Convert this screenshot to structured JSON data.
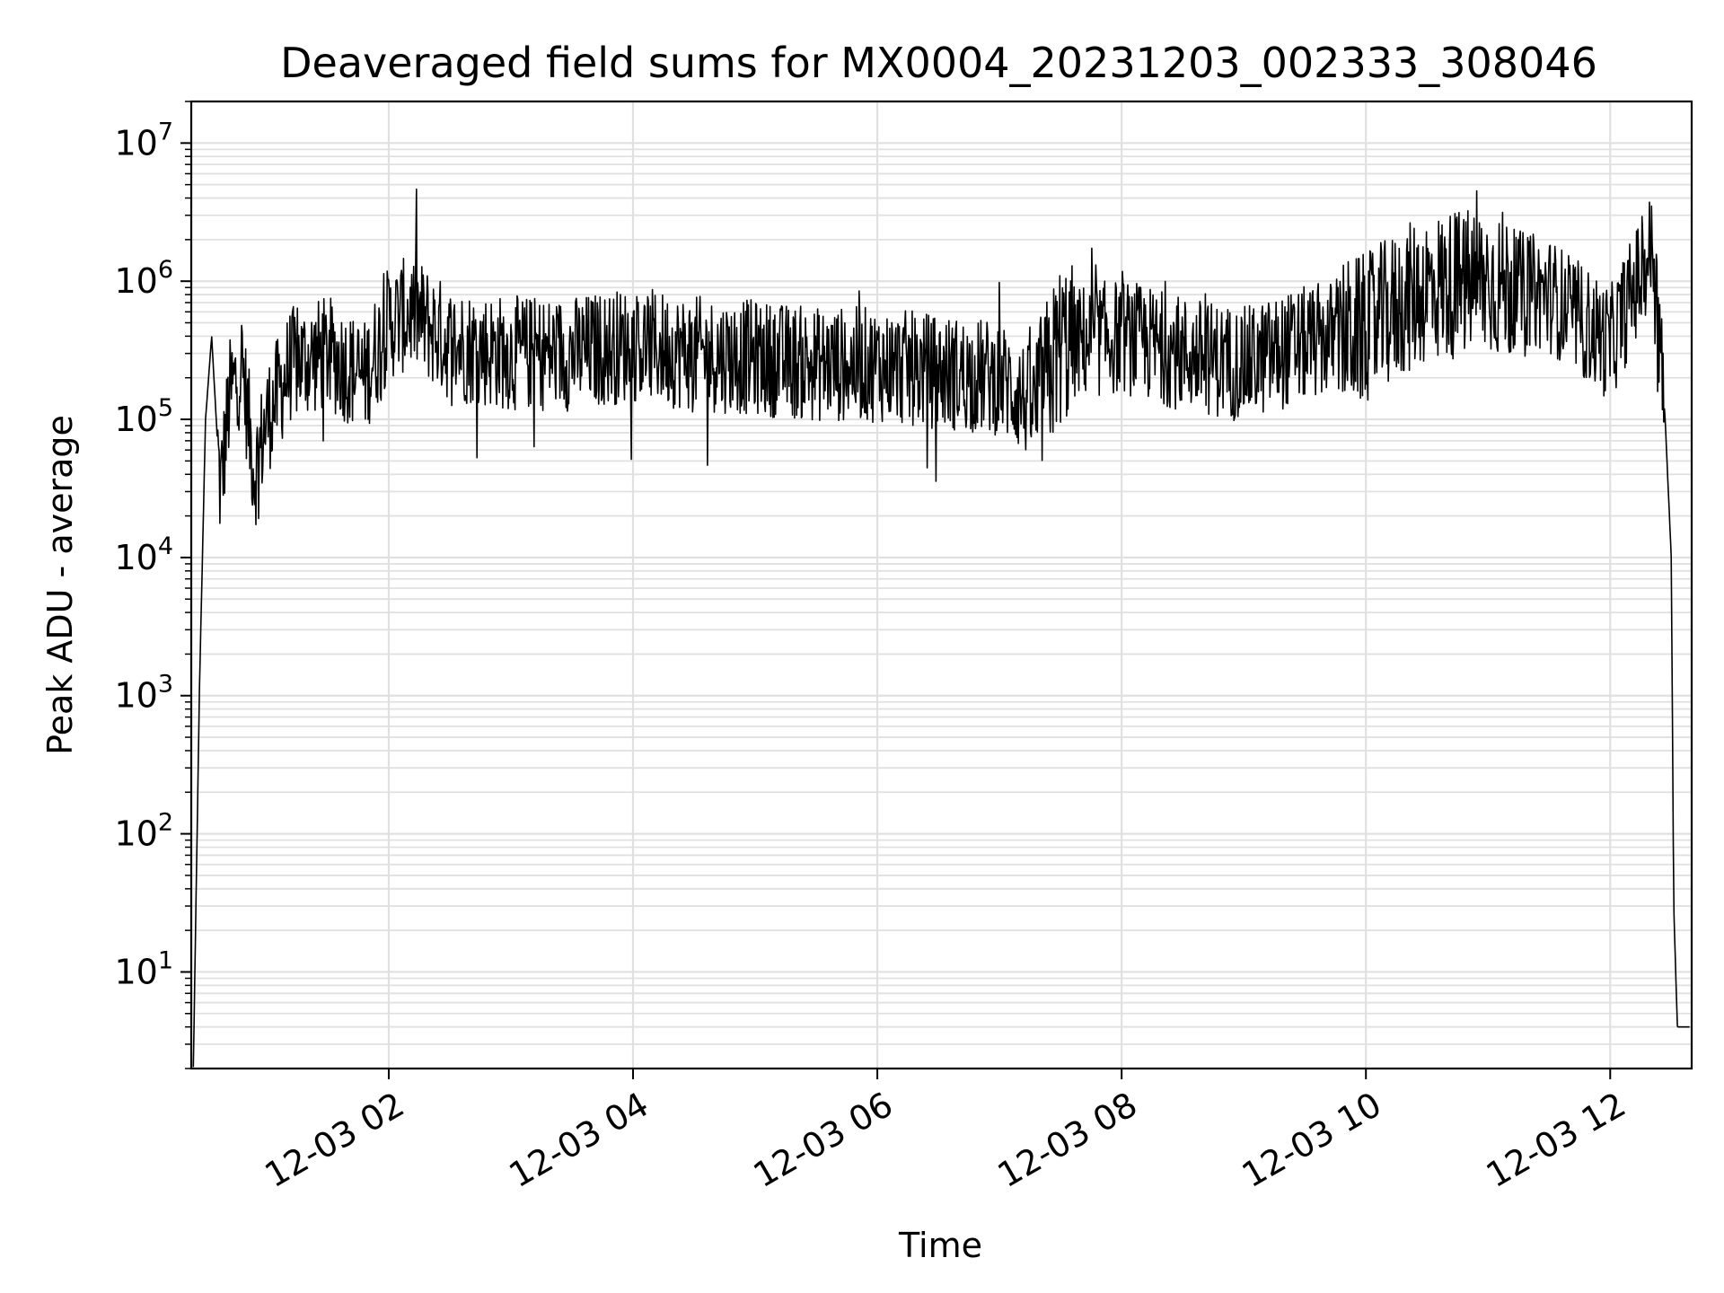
{
  "chart_data": {
    "type": "line",
    "title": "Deaveraged field sums for MX0004_20231203_002333_308046",
    "xlabel": "Time",
    "ylabel": "Peak ADU - average",
    "yscale": "log",
    "xlim": [
      "12-03 00:23",
      "12-03 12:40"
    ],
    "ylim": [
      2,
      20000000
    ],
    "grid": true,
    "line_color": "#000000",
    "x_ticks": [
      "12-03 02",
      "12-03 04",
      "12-03 06",
      "12-03 08",
      "12-03 10",
      "12-03 12"
    ],
    "y_ticks": [
      {
        "base": "10",
        "exp": "1",
        "value": 10
      },
      {
        "base": "10",
        "exp": "2",
        "value": 100
      },
      {
        "base": "10",
        "exp": "3",
        "value": 1000
      },
      {
        "base": "10",
        "exp": "4",
        "value": 10000
      },
      {
        "base": "10",
        "exp": "5",
        "value": 100000
      },
      {
        "base": "10",
        "exp": "6",
        "value": 1000000
      },
      {
        "base": "10",
        "exp": "7",
        "value": 10000000
      }
    ],
    "series": [
      {
        "x_unit": "hours of 12-03",
        "x": [
          0.4,
          0.45,
          0.5,
          0.55,
          0.62,
          0.7,
          0.8,
          0.9,
          1.0,
          1.2,
          1.5,
          1.8,
          2.0,
          2.2,
          2.5,
          3.0,
          3.5,
          4.0,
          4.5,
          5.0,
          5.5,
          6.0,
          6.5,
          7.0,
          7.3,
          7.5,
          8.0,
          8.5,
          9.0,
          9.5,
          10.0,
          10.3,
          10.5,
          11.0,
          11.5,
          12.0,
          12.35,
          12.45,
          12.5,
          12.52,
          12.55,
          12.65
        ],
        "y": [
          2,
          1100,
          100000,
          400000,
          30000,
          150000,
          250000,
          40000,
          100000,
          250000,
          300000,
          200000,
          500000,
          600000,
          350000,
          300000,
          300000,
          350000,
          300000,
          280000,
          250000,
          250000,
          220000,
          200000,
          120000,
          350000,
          400000,
          300000,
          250000,
          350000,
          450000,
          700000,
          900000,
          1000000,
          800000,
          350000,
          1800000,
          100000,
          10000,
          30,
          4,
          4
        ]
      }
    ]
  }
}
